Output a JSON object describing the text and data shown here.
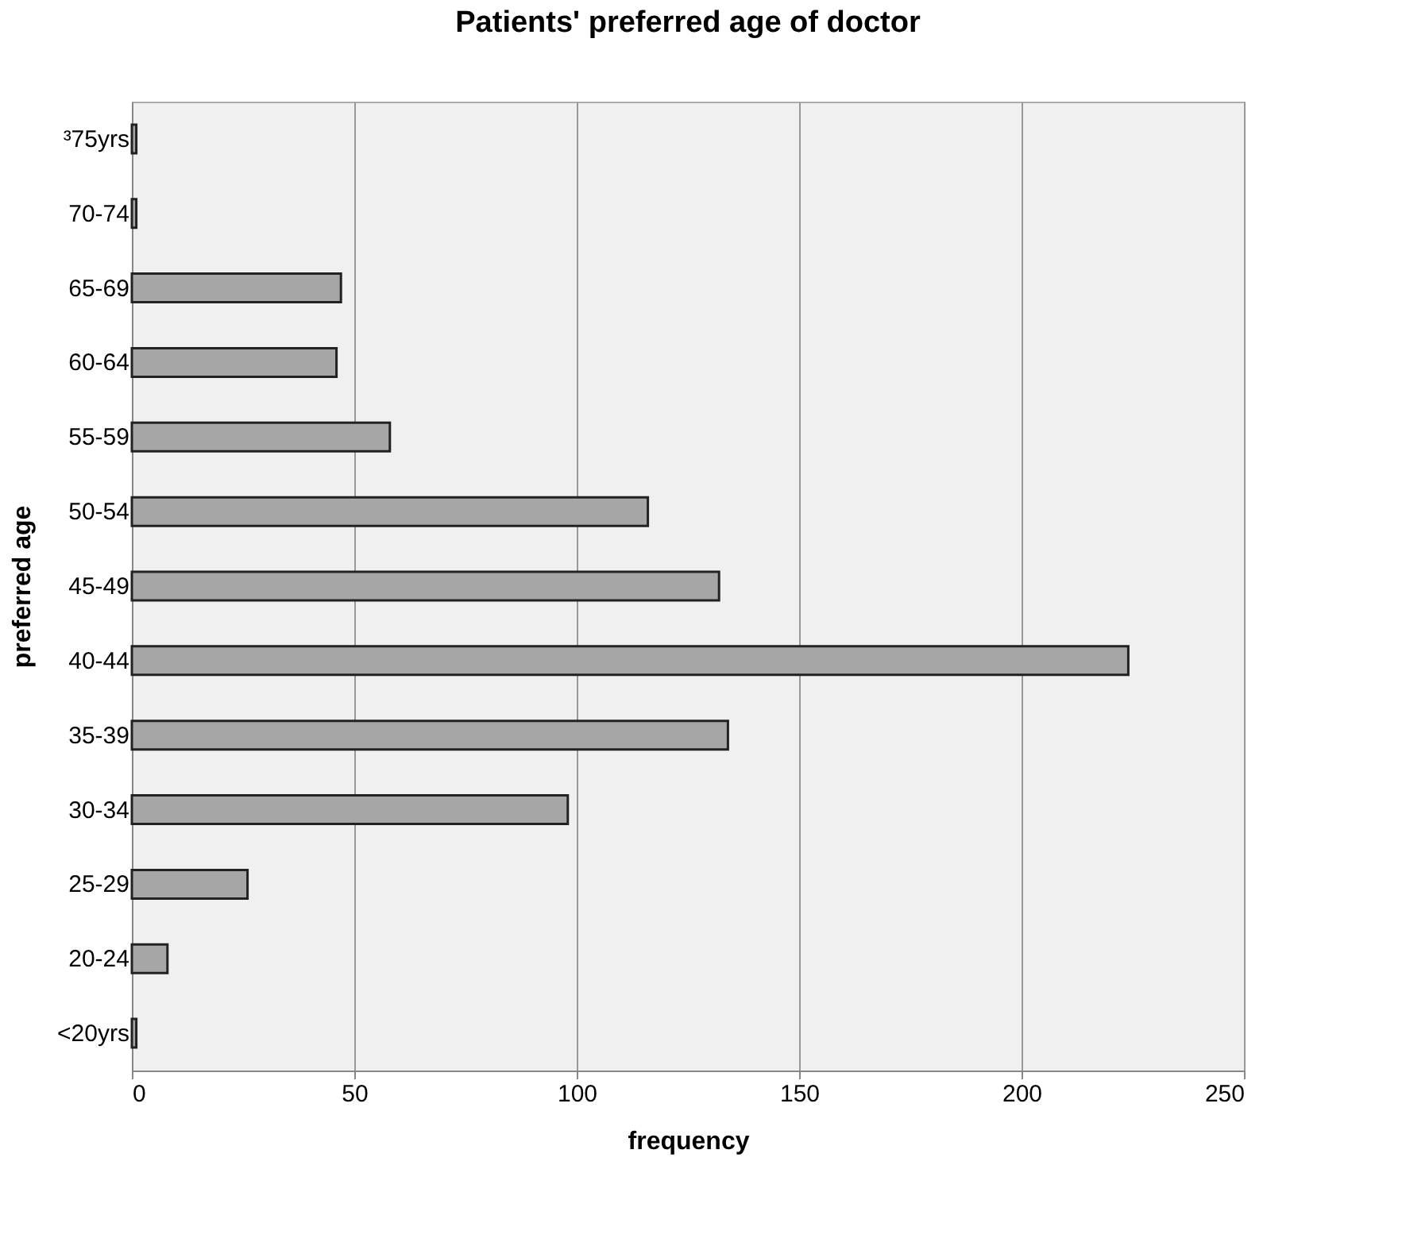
{
  "chart_data": {
    "type": "bar",
    "orientation": "horizontal",
    "title": "Patients' preferred age of doctor",
    "xlabel": "frequency",
    "ylabel": "preferred age",
    "categories": [
      "³75yrs",
      "70-74",
      "65-69",
      "60-64",
      "55-59",
      "50-54",
      "45-49",
      "40-44",
      "35-39",
      "30-34",
      "25-29",
      "20-24",
      "<20yrs"
    ],
    "values": [
      1,
      1,
      47,
      46,
      58,
      116,
      132,
      224,
      134,
      98,
      26,
      8,
      1
    ],
    "color": "#a6a6a6",
    "xlim": [
      0,
      250
    ],
    "xticks": [
      0,
      50,
      100,
      150,
      200,
      250
    ],
    "grid": "x"
  }
}
